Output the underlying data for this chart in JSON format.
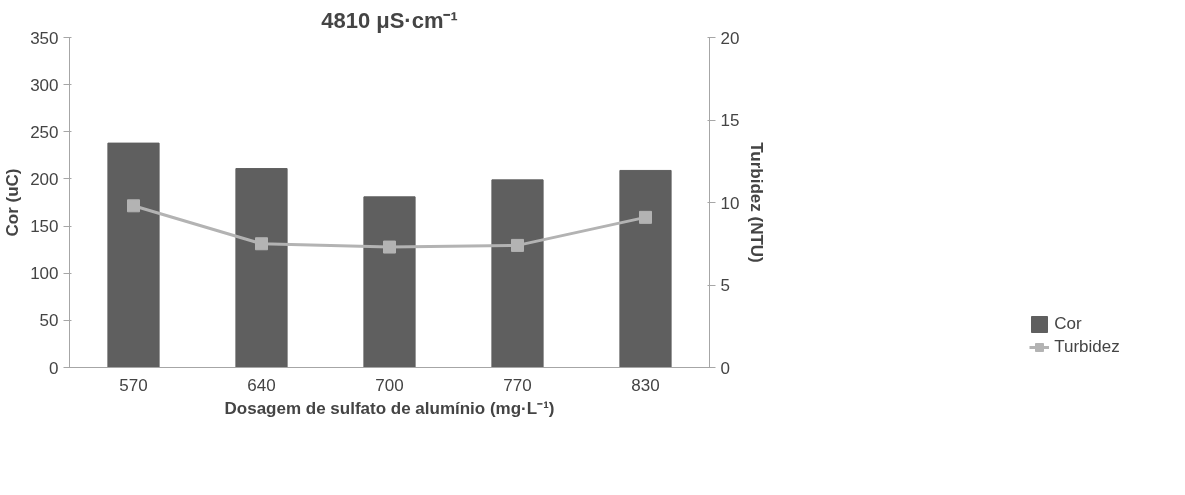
{
  "chart_data": {
    "type": "bar",
    "title": "4810 μS·cm⁻¹",
    "xlabel": "Dosagem de sulfato de alumínio (mg·L⁻¹)",
    "ylabel": "Cor (uC)",
    "y2label": "Turbidez (NTU)",
    "categories": [
      "570",
      "640",
      "700",
      "770",
      "830"
    ],
    "series": [
      {
        "name": "Cor",
        "color": "#5f5f5f",
        "values": [
          238,
          211,
          181,
          199,
          209
        ]
      },
      {
        "name": "Turbidez",
        "type": "line",
        "axis": "y2",
        "color": "#b3b3b3",
        "marker": "square",
        "values": [
          9.8,
          7.5,
          7.3,
          7.4,
          9.1
        ]
      }
    ],
    "ylim": [
      0,
      350
    ],
    "yticks": [
      0,
      50,
      100,
      150,
      200,
      250,
      300,
      350
    ],
    "y2lim": [
      0,
      20
    ],
    "y2ticks": [
      0,
      5,
      10,
      15,
      20
    ],
    "grid": false,
    "legend": "bottom right"
  }
}
